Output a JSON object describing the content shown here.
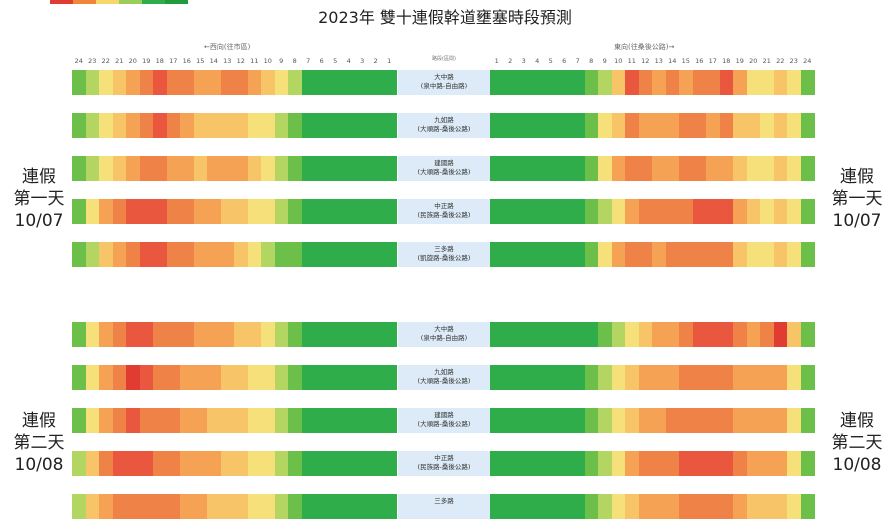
{
  "title": "2023年 雙十連假幹道壅塞時段預測",
  "legend": {
    "colors": [
      "#e03c31",
      "#f0853c",
      "#f7d66a",
      "#9acd5a",
      "#2fad4a",
      "#1f9a3c"
    ]
  },
  "header": {
    "west_label": "←西向(往市區)",
    "east_label": "東向(往桑後公路)→",
    "center_label": "路段(區間)",
    "west_hours": [
      "24",
      "23",
      "22",
      "21",
      "20",
      "19",
      "18",
      "17",
      "16",
      "15",
      "14",
      "13",
      "12",
      "11",
      "10",
      "9",
      "8",
      "7",
      "6",
      "5",
      "4",
      "3",
      "2",
      "1"
    ],
    "east_hours": [
      "1",
      "2",
      "3",
      "4",
      "5",
      "6",
      "7",
      "8",
      "9",
      "10",
      "11",
      "12",
      "13",
      "14",
      "15",
      "16",
      "17",
      "18",
      "19",
      "20",
      "21",
      "22",
      "23",
      "24"
    ]
  },
  "palette": {
    "0": "#1f9a3c",
    "1": "#2fad4a",
    "2": "#6cc04a",
    "3": "#b3d561",
    "4": "#f5e07a",
    "5": "#f7c567",
    "6": "#f5a255",
    "7": "#ef8247",
    "8": "#e9573f",
    "9": "#e03c31"
  },
  "days": [
    {
      "label": "連假\n第一天\n10/07",
      "label_right": "連假\n第一天\n10/07",
      "roads": [
        {
          "name": "大中路",
          "range": "(泉中路-自由路)",
          "west": [
            2,
            3,
            4,
            5,
            6,
            7,
            8,
            7,
            7,
            6,
            6,
            7,
            7,
            6,
            5,
            4,
            3,
            1,
            1,
            1,
            1,
            1,
            1,
            1
          ],
          "east": [
            1,
            1,
            1,
            1,
            1,
            1,
            1,
            2,
            3,
            5,
            8,
            7,
            6,
            7,
            6,
            7,
            7,
            8,
            6,
            4,
            4,
            5,
            4,
            2
          ]
        },
        {
          "name": "九如路",
          "range": "(大順路-桑後公路)",
          "west": [
            2,
            3,
            4,
            5,
            6,
            7,
            8,
            7,
            6,
            5,
            5,
            5,
            5,
            4,
            4,
            3,
            2,
            1,
            1,
            1,
            1,
            1,
            1,
            1
          ],
          "east": [
            1,
            1,
            1,
            1,
            1,
            1,
            1,
            2,
            4,
            5,
            7,
            6,
            6,
            6,
            7,
            7,
            6,
            7,
            5,
            5,
            4,
            5,
            4,
            2
          ]
        },
        {
          "name": "建國路",
          "range": "(大順路-桑後公路)",
          "west": [
            2,
            3,
            4,
            5,
            6,
            7,
            7,
            6,
            6,
            5,
            6,
            6,
            6,
            5,
            4,
            3,
            2,
            1,
            1,
            1,
            1,
            1,
            1,
            1
          ],
          "east": [
            1,
            1,
            1,
            1,
            1,
            1,
            1,
            2,
            4,
            6,
            7,
            7,
            6,
            6,
            7,
            7,
            6,
            6,
            5,
            4,
            4,
            5,
            4,
            2
          ]
        },
        {
          "name": "中正路",
          "range": "(民族路-桑後公路)",
          "west": [
            2,
            4,
            6,
            7,
            8,
            8,
            8,
            7,
            7,
            6,
            6,
            5,
            5,
            4,
            4,
            3,
            2,
            1,
            1,
            1,
            1,
            1,
            1,
            1
          ],
          "east": [
            1,
            1,
            1,
            1,
            1,
            1,
            1,
            2,
            3,
            4,
            6,
            7,
            7,
            7,
            7,
            8,
            8,
            8,
            6,
            5,
            4,
            5,
            4,
            2
          ]
        },
        {
          "name": "三多路",
          "range": "(凱旋路-桑後公路)",
          "west": [
            2,
            3,
            5,
            6,
            7,
            8,
            8,
            7,
            7,
            6,
            6,
            6,
            5,
            4,
            3,
            2,
            2,
            1,
            1,
            1,
            1,
            1,
            1,
            1
          ],
          "east": [
            1,
            1,
            1,
            1,
            1,
            1,
            1,
            2,
            4,
            6,
            7,
            7,
            6,
            7,
            7,
            7,
            7,
            7,
            5,
            4,
            4,
            5,
            4,
            2
          ]
        }
      ]
    },
    {
      "label": "連假\n第二天\n10/08",
      "label_right": "連假\n第二天\n10/08",
      "roads": [
        {
          "name": "大中路",
          "range": "(泉中路-自由路)",
          "west": [
            2,
            4,
            6,
            7,
            8,
            8,
            7,
            7,
            7,
            6,
            6,
            6,
            5,
            5,
            4,
            3,
            2,
            1,
            1,
            1,
            1,
            1,
            1,
            1
          ],
          "east": [
            1,
            1,
            1,
            1,
            1,
            1,
            1,
            1,
            2,
            3,
            4,
            5,
            6,
            6,
            7,
            8,
            8,
            8,
            7,
            6,
            7,
            9,
            5,
            2
          ]
        },
        {
          "name": "九如路",
          "range": "(大順路-桑後公路)",
          "west": [
            2,
            4,
            6,
            7,
            9,
            8,
            7,
            7,
            6,
            6,
            6,
            5,
            5,
            4,
            4,
            3,
            2,
            1,
            1,
            1,
            1,
            1,
            1,
            1
          ],
          "east": [
            1,
            1,
            1,
            1,
            1,
            1,
            1,
            2,
            3,
            4,
            5,
            6,
            6,
            6,
            7,
            7,
            7,
            7,
            6,
            6,
            6,
            6,
            4,
            2
          ]
        },
        {
          "name": "建國路",
          "range": "(大順路-桑後公路)",
          "west": [
            2,
            4,
            6,
            7,
            8,
            7,
            7,
            7,
            6,
            6,
            5,
            5,
            5,
            4,
            4,
            3,
            2,
            1,
            1,
            1,
            1,
            1,
            1,
            1
          ],
          "east": [
            1,
            1,
            1,
            1,
            1,
            1,
            1,
            2,
            3,
            4,
            5,
            6,
            6,
            7,
            7,
            7,
            7,
            7,
            6,
            6,
            6,
            6,
            4,
            2
          ]
        },
        {
          "name": "中正路",
          "range": "(民族路-桑後公路)",
          "west": [
            3,
            5,
            7,
            8,
            8,
            8,
            7,
            7,
            6,
            6,
            6,
            5,
            5,
            4,
            4,
            3,
            2,
            1,
            1,
            1,
            1,
            1,
            1,
            1
          ],
          "east": [
            1,
            1,
            1,
            1,
            1,
            1,
            1,
            2,
            3,
            4,
            6,
            7,
            7,
            7,
            8,
            8,
            8,
            8,
            7,
            6,
            6,
            6,
            4,
            2
          ]
        },
        {
          "name": "三多路",
          "range": "",
          "west": [
            3,
            5,
            6,
            7,
            7,
            7,
            7,
            7,
            6,
            6,
            5,
            5,
            5,
            4,
            4,
            3,
            2,
            1,
            1,
            1,
            1,
            1,
            1,
            1
          ],
          "east": [
            1,
            1,
            1,
            1,
            1,
            1,
            1,
            2,
            3,
            4,
            5,
            6,
            6,
            6,
            7,
            7,
            7,
            7,
            6,
            5,
            5,
            5,
            4,
            2
          ]
        }
      ]
    }
  ]
}
